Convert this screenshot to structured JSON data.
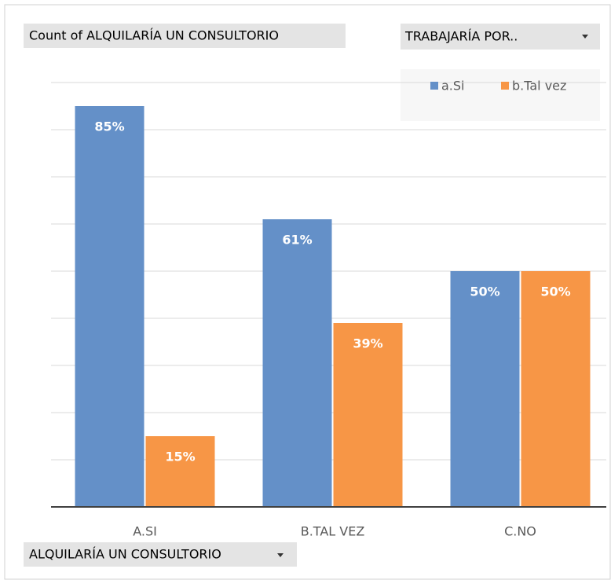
{
  "chart_data": {
    "type": "bar",
    "value_field": "Count of ALQUILARÍA UN CONSULTORIO",
    "legend_field": "TRABAJARÍA POR..",
    "axis_field": "ALQUILARÍA UN CONSULTORIO",
    "categories": [
      "A.SI",
      "B.TAL VEZ",
      "C.NO"
    ],
    "series": [
      {
        "name": "a.Si",
        "color": "#6490c8",
        "values": [
          85,
          61,
          50
        ],
        "value_labels": [
          "85%",
          "61%",
          "50%"
        ]
      },
      {
        "name": "b.Tal vez",
        "color": "#f79646",
        "values": [
          15,
          39,
          50
        ],
        "value_labels": [
          "15%",
          "39%",
          "50%"
        ]
      }
    ],
    "ylim": [
      0,
      90
    ],
    "yticks": [
      0,
      10,
      20,
      30,
      40,
      50,
      60,
      70,
      80,
      90
    ],
    "grid": true,
    "legend": "top-right"
  }
}
